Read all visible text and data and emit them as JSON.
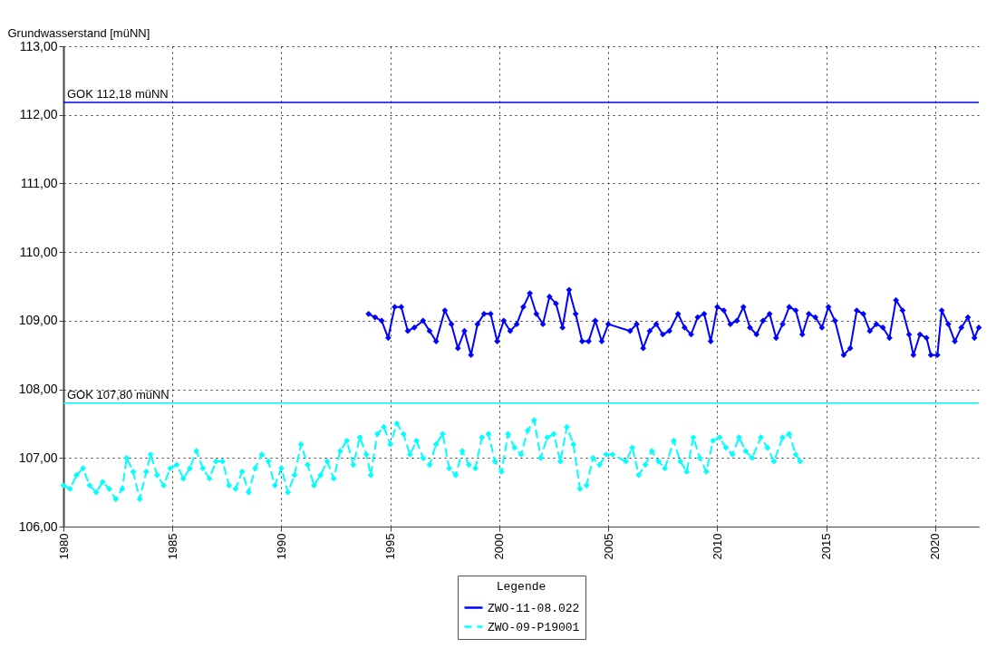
{
  "chart_data": {
    "type": "line",
    "ylabel": "Grundwasserstand [müNN]",
    "legend_title": "Legende",
    "legend": "bottom",
    "grid": true,
    "marker": "diamond",
    "xlim": [
      1980,
      2022
    ],
    "xticks": [
      1980,
      1985,
      1990,
      1995,
      2000,
      2005,
      2010,
      2015,
      2020
    ],
    "ylim": [
      106,
      113
    ],
    "yticks": [
      {
        "value": 106,
        "label": "106,00"
      },
      {
        "value": 107,
        "label": "107,00"
      },
      {
        "value": 108,
        "label": "108,00"
      },
      {
        "value": 109,
        "label": "109,00"
      },
      {
        "value": 110,
        "label": "110,00"
      },
      {
        "value": 111,
        "label": "111,00"
      },
      {
        "value": 112,
        "label": "112,00"
      },
      {
        "value": 113,
        "label": "113,00"
      }
    ],
    "ref_lines": [
      {
        "axis": "y",
        "value": 112.18,
        "label": "GOK 112,18 müNN",
        "color": "#0000ff"
      },
      {
        "axis": "y",
        "value": 107.8,
        "label": "GOK 107,80 müNN",
        "color": "#00ffff"
      }
    ],
    "series": [
      {
        "name": "ZWO-11-08.022",
        "color": "#0000ff",
        "line_style": "solid",
        "x": [
          1994.0,
          1994.3,
          1994.6,
          1994.9,
          1995.2,
          1995.5,
          1995.8,
          1996.1,
          1996.5,
          1996.8,
          1997.1,
          1997.5,
          1997.8,
          1998.1,
          1998.4,
          1998.7,
          1999.0,
          1999.3,
          1999.6,
          1999.9,
          2000.2,
          2000.5,
          2000.8,
          2001.1,
          2001.4,
          2001.7,
          2002.0,
          2002.3,
          2002.6,
          2002.9,
          2003.2,
          2003.5,
          2003.8,
          2004.1,
          2004.4,
          2004.7,
          2005.0,
          2006.0,
          2006.3,
          2006.6,
          2006.9,
          2007.2,
          2007.5,
          2007.8,
          2008.2,
          2008.5,
          2008.8,
          2009.1,
          2009.4,
          2009.7,
          2010.0,
          2010.3,
          2010.6,
          2010.9,
          2011.2,
          2011.5,
          2011.8,
          2012.1,
          2012.4,
          2012.7,
          2013.0,
          2013.3,
          2013.6,
          2013.9,
          2014.2,
          2014.5,
          2014.8,
          2015.1,
          2015.4,
          2015.8,
          2016.1,
          2016.4,
          2016.7,
          2017.0,
          2017.3,
          2017.6,
          2017.9,
          2018.2,
          2018.5,
          2018.8,
          2019.0,
          2019.3,
          2019.6,
          2019.8,
          2020.1,
          2020.3,
          2020.6,
          2020.9,
          2021.2,
          2021.5,
          2021.8,
          2022.0
        ],
        "values": [
          109.1,
          109.05,
          109.0,
          108.75,
          109.2,
          109.2,
          108.85,
          108.9,
          109.0,
          108.85,
          108.7,
          109.15,
          108.95,
          108.6,
          108.85,
          108.5,
          108.95,
          109.1,
          109.1,
          108.7,
          109.0,
          108.85,
          108.95,
          109.2,
          109.4,
          109.1,
          108.95,
          109.35,
          109.25,
          108.9,
          109.45,
          109.1,
          108.7,
          108.7,
          109.0,
          108.7,
          108.95,
          108.85,
          108.95,
          108.6,
          108.85,
          108.95,
          108.8,
          108.85,
          109.1,
          108.9,
          108.8,
          109.05,
          109.1,
          108.7,
          109.2,
          109.15,
          108.95,
          109.0,
          109.2,
          108.9,
          108.8,
          109.0,
          109.1,
          108.75,
          108.95,
          109.2,
          109.15,
          108.8,
          109.1,
          109.05,
          108.9,
          109.2,
          109.0,
          108.5,
          108.6,
          109.15,
          109.1,
          108.85,
          108.95,
          108.9,
          108.75,
          109.3,
          109.15,
          108.8,
          108.5,
          108.8,
          108.75,
          108.5,
          108.5,
          109.15,
          108.95,
          108.7,
          108.9,
          109.05,
          108.75,
          108.9
        ]
      },
      {
        "name": "ZWO-09-P19001",
        "color": "#00ffff",
        "line_style": "dashed",
        "x": [
          1980.0,
          1980.3,
          1980.6,
          1980.9,
          1981.2,
          1981.5,
          1981.8,
          1982.1,
          1982.4,
          1982.7,
          1982.9,
          1983.2,
          1983.5,
          1983.8,
          1984.0,
          1984.3,
          1984.6,
          1984.9,
          1985.2,
          1985.5,
          1985.8,
          1986.1,
          1986.4,
          1986.7,
          1987.0,
          1987.3,
          1987.6,
          1987.9,
          1988.2,
          1988.5,
          1988.8,
          1989.1,
          1989.4,
          1989.7,
          1990.0,
          1990.3,
          1990.6,
          1990.9,
          1991.2,
          1991.5,
          1991.8,
          1992.1,
          1992.4,
          1992.7,
          1993.0,
          1993.3,
          1993.6,
          1993.9,
          1994.1,
          1994.4,
          1994.7,
          1995.0,
          1995.3,
          1995.6,
          1995.9,
          1996.2,
          1996.5,
          1996.8,
          1997.1,
          1997.4,
          1997.7,
          1998.0,
          1998.3,
          1998.6,
          1998.9,
          1999.2,
          1999.5,
          1999.8,
          2000.1,
          2000.4,
          2000.7,
          2001.0,
          2001.3,
          2001.6,
          2001.9,
          2002.2,
          2002.5,
          2002.8,
          2003.1,
          2003.4,
          2003.7,
          2004.0,
          2004.3,
          2004.6,
          2004.9,
          2005.2,
          2005.8,
          2006.1,
          2006.4,
          2006.7,
          2007.0,
          2007.3,
          2007.6,
          2008.0,
          2008.3,
          2008.6,
          2008.9,
          2009.2,
          2009.5,
          2009.8,
          2010.1,
          2010.4,
          2010.7,
          2011.0,
          2011.3,
          2011.6,
          2012.0,
          2012.3,
          2012.6,
          2013.0,
          2013.3,
          2013.6,
          2013.8
        ],
        "values": [
          106.6,
          106.55,
          106.75,
          106.85,
          106.6,
          106.5,
          106.65,
          106.55,
          106.4,
          106.55,
          107.0,
          106.8,
          106.4,
          106.8,
          107.05,
          106.75,
          106.6,
          106.85,
          106.9,
          106.7,
          106.85,
          107.1,
          106.85,
          106.7,
          106.95,
          106.95,
          106.6,
          106.55,
          106.8,
          106.5,
          106.85,
          107.05,
          106.95,
          106.6,
          106.85,
          106.5,
          106.75,
          107.2,
          106.9,
          106.6,
          106.75,
          106.95,
          106.7,
          107.1,
          107.25,
          106.9,
          107.3,
          107.05,
          106.75,
          107.35,
          107.45,
          107.2,
          107.5,
          107.35,
          107.05,
          107.25,
          107.0,
          106.9,
          107.2,
          107.35,
          106.85,
          106.75,
          107.1,
          106.9,
          106.85,
          107.3,
          107.35,
          106.95,
          106.8,
          107.35,
          107.15,
          107.05,
          107.4,
          107.55,
          107.0,
          107.3,
          107.35,
          106.95,
          107.45,
          107.2,
          106.55,
          106.6,
          107.0,
          106.9,
          107.05,
          107.05,
          106.95,
          107.15,
          106.75,
          106.9,
          107.1,
          106.95,
          106.85,
          107.25,
          106.95,
          106.8,
          107.3,
          107.0,
          106.8,
          107.25,
          107.3,
          107.15,
          107.05,
          107.3,
          107.1,
          107.0,
          107.3,
          107.15,
          106.95,
          107.3,
          107.35,
          107.05,
          106.95
        ]
      }
    ]
  }
}
